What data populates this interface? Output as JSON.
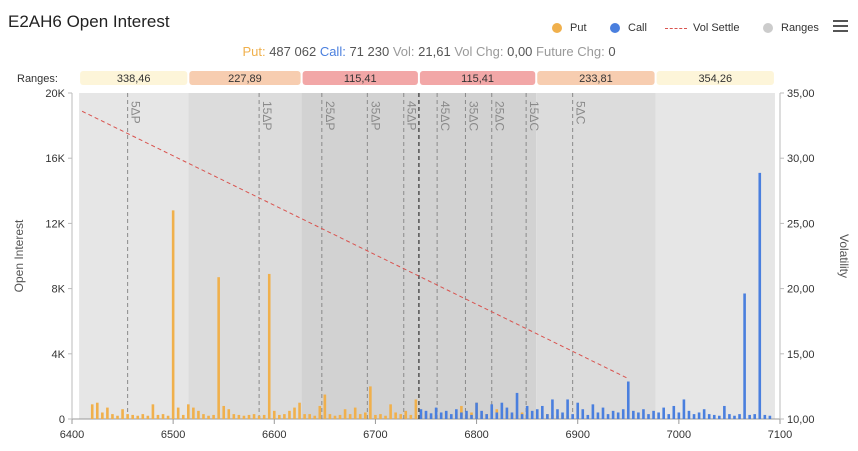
{
  "title": "E2AH6 Open Interest",
  "legend": [
    {
      "label": "Put",
      "color": "#f0b04c",
      "kind": "dot"
    },
    {
      "label": "Call",
      "color": "#4a7fde",
      "kind": "dot"
    },
    {
      "label": "Vol Settle",
      "color": "#d9534f",
      "kind": "dash"
    },
    {
      "label": "Ranges",
      "color": "#cccccc",
      "kind": "dot"
    }
  ],
  "stats": {
    "put_label": "Put:",
    "put_value": "487 062",
    "call_label": "Call:",
    "call_value": "71 230",
    "vol_label": "Vol:",
    "vol_value": "21,61",
    "volchg_label": "Vol Chg:",
    "volchg_value": "0,00",
    "futchg_label": "Future Chg:",
    "futchg_value": "0"
  },
  "chart_data": {
    "type": "bar",
    "ranges_label": "Ranges:",
    "ranges": [
      {
        "from": 6407,
        "to": 6515,
        "label": "338,46",
        "color": "#fdf5d9",
        "shade": "#e6e6e6"
      },
      {
        "from": 6515,
        "to": 6627,
        "label": "227,89",
        "color": "#f7cdb0",
        "shade": "#dcdcdc"
      },
      {
        "from": 6627,
        "to": 6743,
        "label": "115,41",
        "color": "#f2a7a7",
        "shade": "#d2d2d2"
      },
      {
        "from": 6743,
        "to": 6859,
        "label": "115,41",
        "color": "#f2a7a7",
        "shade": "#d2d2d2"
      },
      {
        "from": 6859,
        "to": 6977,
        "label": "233,81",
        "color": "#f7cdb0",
        "shade": "#dcdcdc"
      },
      {
        "from": 6977,
        "to": 7095,
        "label": "354,26",
        "color": "#fdf5d9",
        "shade": "#e6e6e6"
      }
    ],
    "delta_lines": [
      {
        "x": 6455,
        "label": "5ΔP"
      },
      {
        "x": 6585,
        "label": "15ΔP"
      },
      {
        "x": 6647,
        "label": "25ΔP"
      },
      {
        "x": 6692,
        "label": "35ΔP"
      },
      {
        "x": 6728,
        "label": "45ΔP"
      },
      {
        "x": 6761,
        "label": "45ΔC"
      },
      {
        "x": 6789,
        "label": "35ΔC"
      },
      {
        "x": 6815,
        "label": "25ΔC"
      },
      {
        "x": 6849,
        "label": "15ΔC"
      },
      {
        "x": 6895,
        "label": "5ΔC"
      }
    ],
    "current_price": 6743,
    "x_ticks": [
      "6400",
      "6500",
      "6600",
      "6700",
      "6800",
      "6900",
      "7000",
      "7100"
    ],
    "xlim": [
      6400,
      7100
    ],
    "y_ticks": [
      "0",
      "4K",
      "8K",
      "12K",
      "16K",
      "20K"
    ],
    "ylim": [
      0,
      20000
    ],
    "ylabel": "Open Interest",
    "y2_ticks": [
      "10,00",
      "15,00",
      "20,00",
      "25,00",
      "30,00",
      "35,00"
    ],
    "y2lim": [
      10,
      35
    ],
    "y2label": "Volatility",
    "put_series": {
      "name": "Put",
      "color": "#f0b04c",
      "x": [
        6420,
        6425,
        6430,
        6435,
        6440,
        6445,
        6450,
        6455,
        6460,
        6465,
        6470,
        6475,
        6480,
        6485,
        6490,
        6495,
        6500,
        6505,
        6510,
        6515,
        6520,
        6525,
        6530,
        6535,
        6540,
        6545,
        6550,
        6555,
        6560,
        6565,
        6570,
        6575,
        6580,
        6585,
        6590,
        6595,
        6600,
        6605,
        6610,
        6615,
        6620,
        6625,
        6630,
        6635,
        6640,
        6645,
        6650,
        6655,
        6660,
        6665,
        6670,
        6675,
        6680,
        6685,
        6690,
        6695,
        6700,
        6705,
        6710,
        6715,
        6720,
        6725,
        6730,
        6735,
        6740,
        6745,
        6750,
        6755,
        6760,
        6765,
        6770,
        6775,
        6780,
        6785,
        6790,
        6795,
        6800,
        6805,
        6810,
        6815,
        6820,
        6825,
        6830,
        6835,
        6840,
        6845,
        6850,
        6855,
        6860,
        6865,
        6870,
        6875,
        6880,
        6885,
        6890
      ],
      "values": [
        900,
        1000,
        400,
        700,
        300,
        200,
        600,
        300,
        250,
        200,
        300,
        200,
        900,
        250,
        300,
        200,
        12800,
        700,
        250,
        900,
        700,
        500,
        300,
        200,
        250,
        8700,
        800,
        600,
        300,
        250,
        200,
        250,
        300,
        200,
        250,
        8900,
        500,
        250,
        300,
        500,
        700,
        1000,
        300,
        300,
        200,
        800,
        1500,
        300,
        200,
        250,
        600,
        300,
        700,
        300,
        400,
        2000,
        250,
        300,
        200,
        900,
        400,
        300,
        500,
        250,
        1200,
        400,
        300,
        200,
        250,
        300,
        400,
        250,
        300,
        800,
        300,
        400,
        1000,
        250,
        300,
        300,
        600,
        300,
        500,
        300,
        250,
        400,
        300,
        200,
        250,
        200,
        300,
        250,
        200,
        250,
        200
      ]
    },
    "call_series": {
      "name": "Call",
      "color": "#4a7fde",
      "x": [
        6745,
        6750,
        6755,
        6760,
        6765,
        6770,
        6775,
        6780,
        6785,
        6790,
        6795,
        6800,
        6805,
        6810,
        6815,
        6820,
        6825,
        6830,
        6835,
        6840,
        6845,
        6850,
        6855,
        6860,
        6865,
        6870,
        6875,
        6880,
        6885,
        6890,
        6895,
        6900,
        6905,
        6910,
        6915,
        6920,
        6925,
        6930,
        6935,
        6940,
        6945,
        6950,
        6955,
        6960,
        6965,
        6970,
        6975,
        6980,
        6985,
        6990,
        6995,
        7000,
        7005,
        7010,
        7015,
        7020,
        7025,
        7030,
        7035,
        7040,
        7045,
        7050,
        7055,
        7060,
        7065,
        7070,
        7075,
        7080,
        7085,
        7090
      ],
      "values": [
        600,
        500,
        350,
        700,
        400,
        500,
        300,
        600,
        400,
        500,
        250,
        1000,
        500,
        300,
        900,
        400,
        1000,
        700,
        400,
        1600,
        300,
        800,
        500,
        600,
        800,
        300,
        1200,
        600,
        400,
        1200,
        300,
        1000,
        600,
        250,
        900,
        400,
        700,
        300,
        500,
        400,
        600,
        2300,
        500,
        400,
        600,
        300,
        500,
        400,
        700,
        300,
        800,
        400,
        1200,
        500,
        300,
        400,
        600,
        300,
        250,
        200,
        800,
        300,
        200,
        300,
        7700,
        250,
        300,
        15100,
        250,
        200
      ]
    },
    "vol_settle": {
      "name": "Vol Settle",
      "color": "#d9534f",
      "x": [
        6410,
        6950
      ],
      "values": [
        33.6,
        13.1
      ]
    }
  }
}
